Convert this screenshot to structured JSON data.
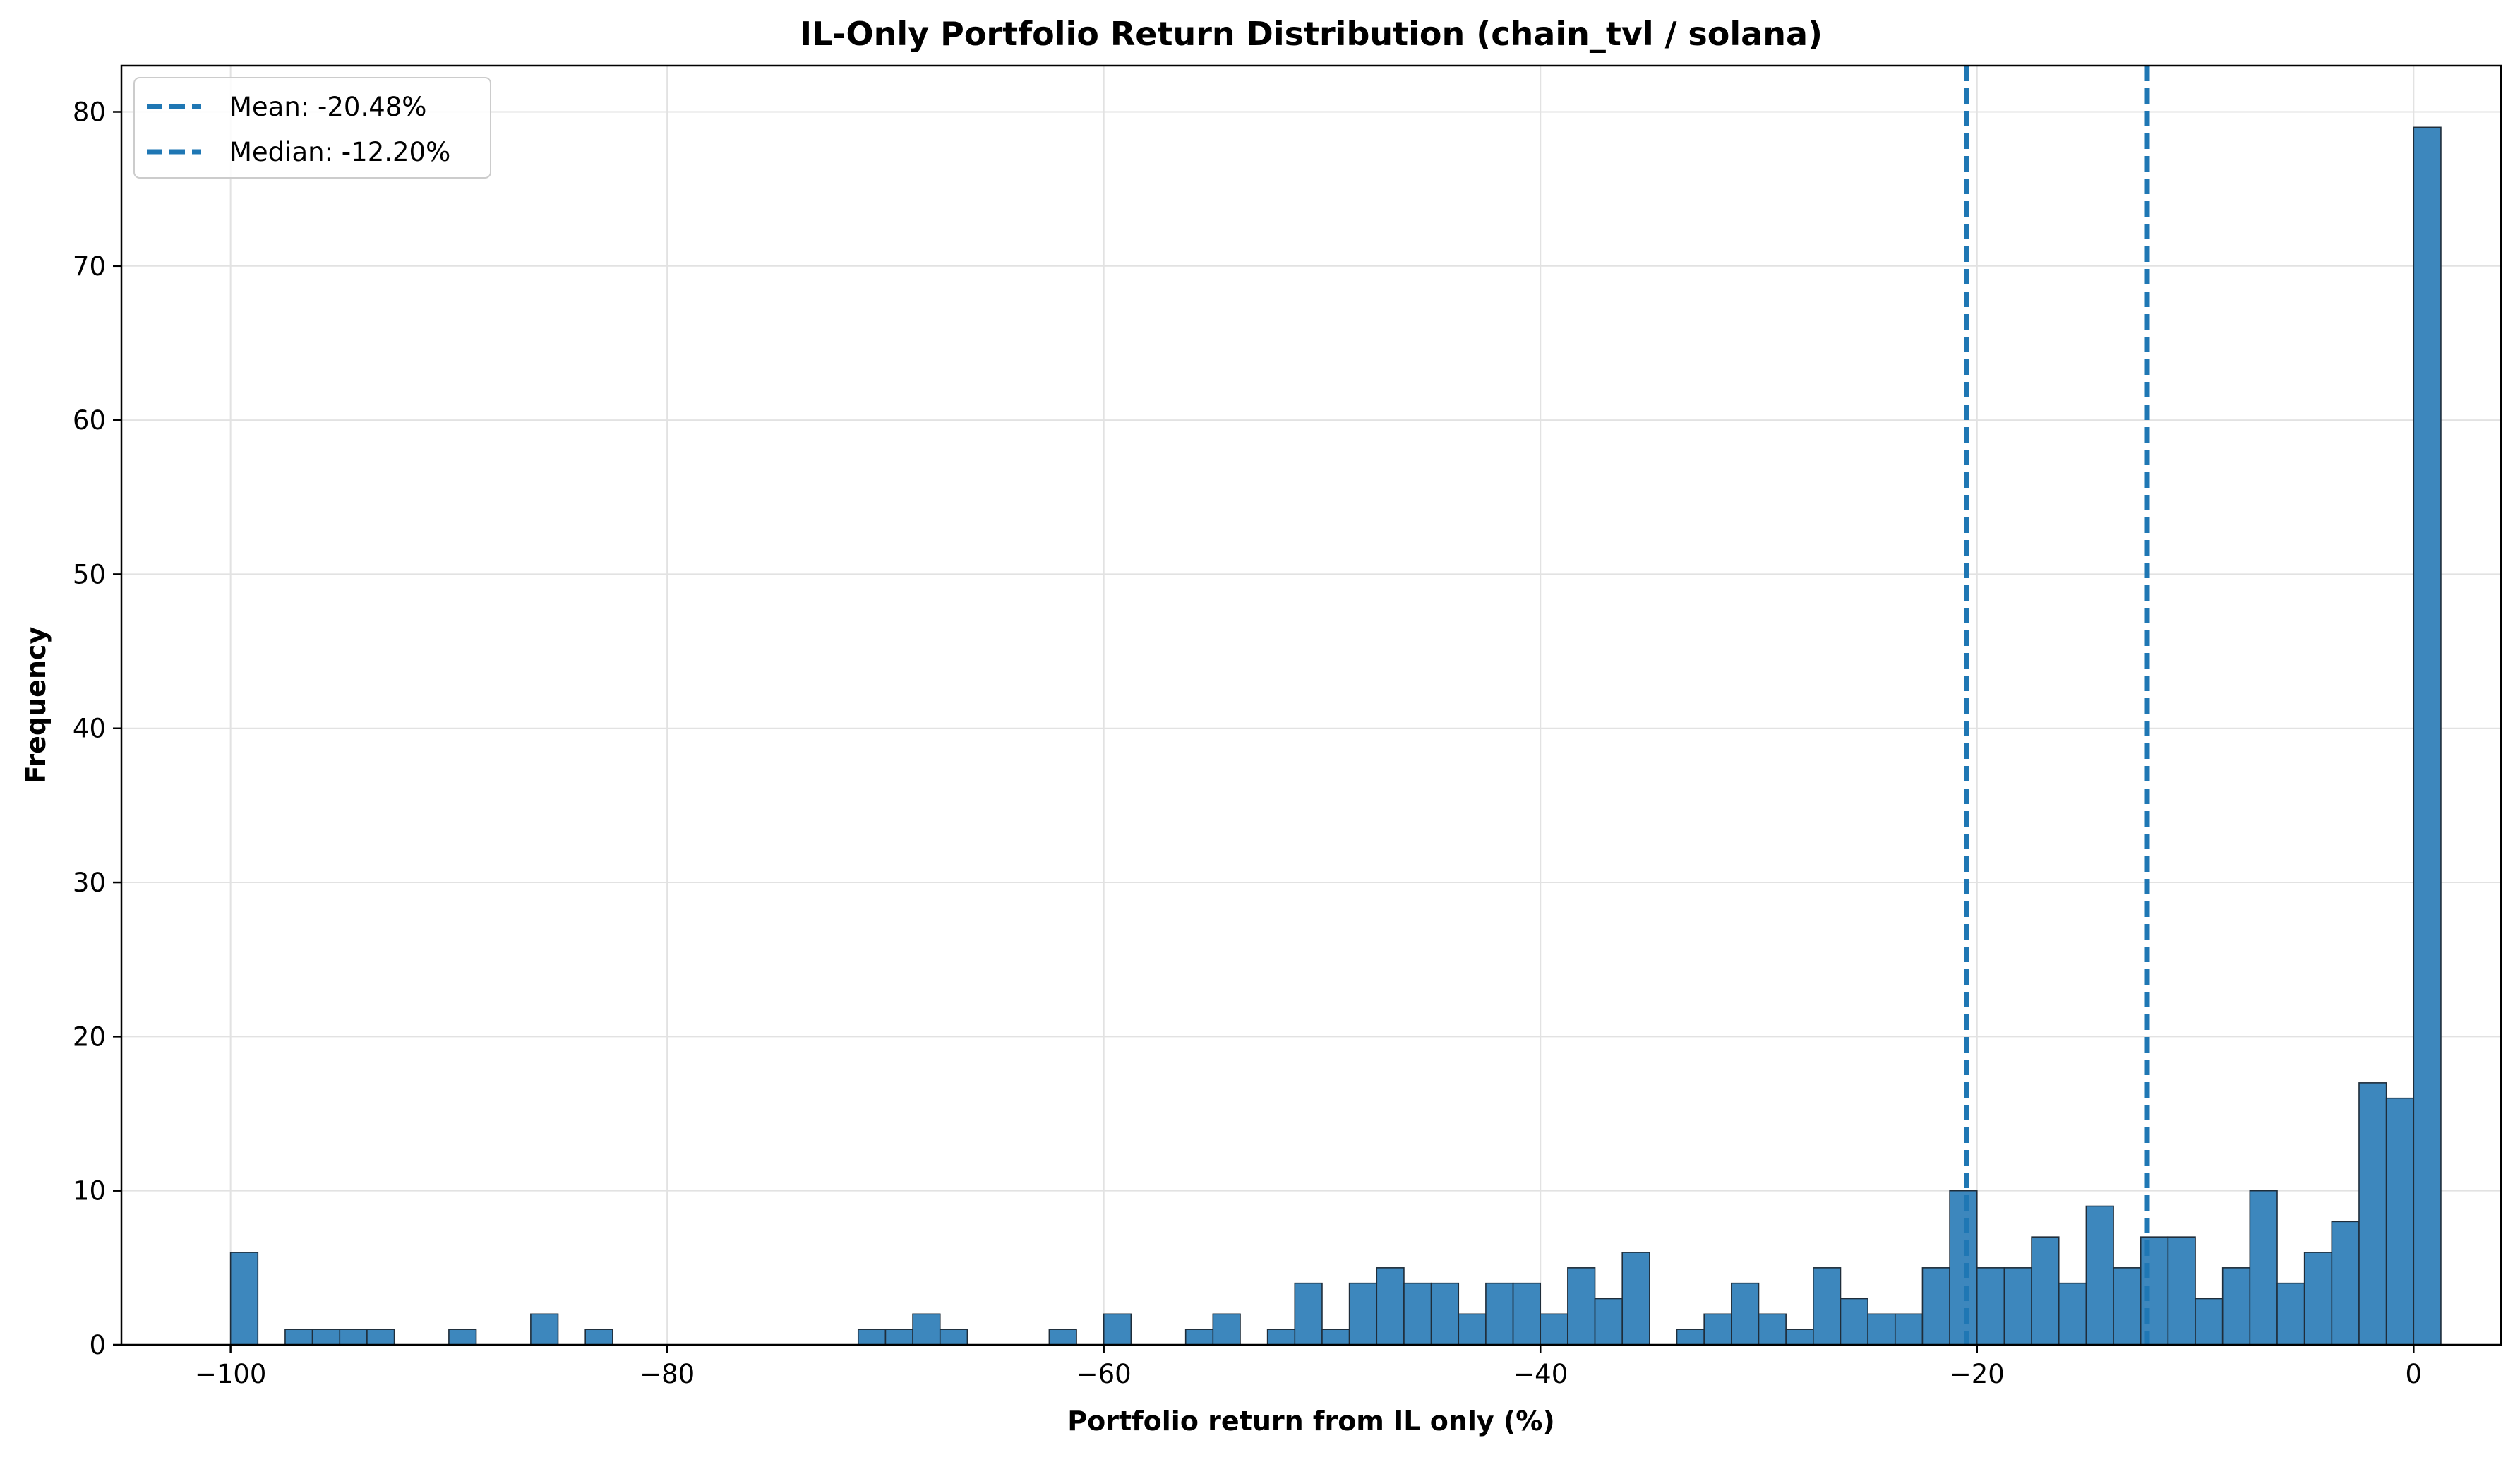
{
  "chart_data": {
    "type": "bar",
    "title": "IL-Only Portfolio Return Distribution (chain_tvl / solana)",
    "xlabel": "Portfolio return from IL only (%)",
    "ylabel": "Frequency",
    "xlim": [
      -105,
      4
    ],
    "ylim": [
      0,
      83
    ],
    "xticks": [
      -100,
      -80,
      -60,
      -40,
      -20,
      0
    ],
    "xtick_labels": [
      "−100",
      "−80",
      "−60",
      "−40",
      "−20",
      "0"
    ],
    "yticks": [
      0,
      10,
      20,
      30,
      40,
      50,
      60,
      70,
      80
    ],
    "ytick_labels": [
      "0",
      "10",
      "20",
      "30",
      "40",
      "50",
      "60",
      "70",
      "80"
    ],
    "grid": true,
    "legend_position": "top-left",
    "bar_color": "#3d87bd",
    "line_color": "#1f77b4",
    "bins": {
      "start": -100,
      "width": 1.25
    },
    "values": [
      6,
      0,
      1,
      1,
      1,
      1,
      0,
      0,
      1,
      0,
      0,
      2,
      0,
      1,
      0,
      0,
      0,
      0,
      0,
      0,
      0,
      0,
      0,
      1,
      1,
      2,
      1,
      0,
      0,
      0,
      1,
      0,
      2,
      0,
      0,
      1,
      2,
      0,
      1,
      4,
      1,
      4,
      5,
      4,
      4,
      2,
      4,
      4,
      2,
      5,
      3,
      6,
      0,
      1,
      2,
      4,
      2,
      1,
      5,
      3,
      2,
      2,
      5,
      10,
      5,
      5,
      7,
      4,
      9,
      5,
      7,
      7,
      3,
      5,
      10,
      4,
      6,
      8,
      17,
      16,
      79
    ],
    "reference_lines": [
      {
        "label": "Mean: -20.48%",
        "x": -20.48,
        "style": "dashed"
      },
      {
        "label": "Median: -12.20%",
        "x": -12.2,
        "style": "dashed"
      }
    ]
  }
}
